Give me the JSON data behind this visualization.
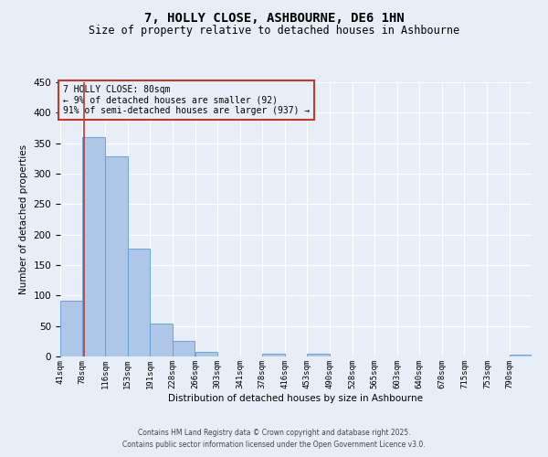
{
  "title": "7, HOLLY CLOSE, ASHBOURNE, DE6 1HN",
  "subtitle": "Size of property relative to detached houses in Ashbourne",
  "xlabel": "Distribution of detached houses by size in Ashbourne",
  "ylabel": "Number of detached properties",
  "bin_edges": [
    41,
    78,
    116,
    153,
    191,
    228,
    266,
    303,
    341,
    378,
    416,
    453,
    490,
    528,
    565,
    603,
    640,
    678,
    715,
    753,
    790
  ],
  "bar_heights": [
    92,
    360,
    328,
    177,
    54,
    26,
    7,
    0,
    0,
    4,
    0,
    4,
    0,
    0,
    0,
    0,
    0,
    0,
    0,
    0,
    3
  ],
  "bar_color": "#aec6e8",
  "bar_edgecolor": "#5b9bd5",
  "vline_x": 80,
  "vline_color": "#c0392b",
  "ylim": [
    0,
    450
  ],
  "annotation_text": "7 HOLLY CLOSE: 80sqm\n← 9% of detached houses are smaller (92)\n91% of semi-detached houses are larger (937) →",
  "annotation_box_color": "#c0392b",
  "annotation_fontsize": 7,
  "title_fontsize": 10,
  "subtitle_fontsize": 8.5,
  "footer_line1": "Contains HM Land Registry data © Crown copyright and database right 2025.",
  "footer_line2": "Contains public sector information licensed under the Open Government Licence v3.0.",
  "tick_labels": [
    "41sqm",
    "78sqm",
    "116sqm",
    "153sqm",
    "191sqm",
    "228sqm",
    "266sqm",
    "303sqm",
    "341sqm",
    "378sqm",
    "416sqm",
    "453sqm",
    "490sqm",
    "528sqm",
    "565sqm",
    "603sqm",
    "640sqm",
    "678sqm",
    "715sqm",
    "753sqm",
    "790sqm"
  ],
  "bg_color": "#e8eef7",
  "grid_color": "#ffffff"
}
